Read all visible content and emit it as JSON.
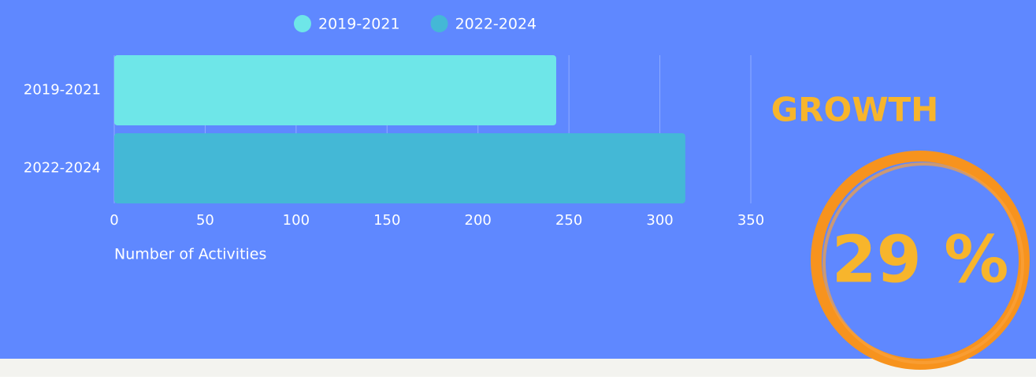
{
  "chart_data": {
    "type": "bar",
    "orientation": "horizontal",
    "categories": [
      "2019-2021",
      "2022-2024"
    ],
    "series": [
      {
        "name": "2019-2021",
        "color": "#6ee6e8",
        "values": [
          243,
          null
        ]
      },
      {
        "name": "2022-2024",
        "color": "#44b8d6",
        "values": [
          null,
          314
        ]
      }
    ],
    "xlabel": "Number of Activities",
    "xlim": [
      0,
      350
    ],
    "xticks": [
      0,
      50,
      100,
      150,
      200,
      250,
      300,
      350
    ],
    "grid": true,
    "legend": "top",
    "annotations": {
      "heading": "GROWTH",
      "highlight": "29 %"
    }
  }
}
